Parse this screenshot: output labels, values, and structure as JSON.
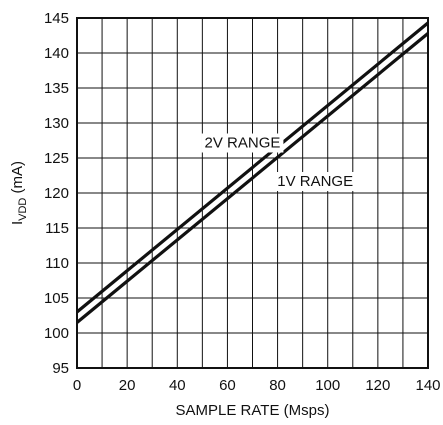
{
  "chart_data": {
    "type": "line",
    "title": "",
    "xlabel": "SAMPLE RATE (Msps)",
    "ylabel": {
      "main": "I",
      "subscript": "VDD",
      "suffix": " (mA)"
    },
    "xlim": [
      0,
      140
    ],
    "ylim": [
      95,
      145
    ],
    "x_ticks": [
      0,
      20,
      40,
      60,
      80,
      100,
      120,
      140
    ],
    "y_ticks": [
      95,
      100,
      105,
      110,
      115,
      120,
      125,
      130,
      135,
      140,
      145
    ],
    "x_tick_labels": [
      "0",
      "20",
      "40",
      "60",
      "80",
      "100",
      "120",
      "140"
    ],
    "y_tick_labels": [
      "95",
      "100",
      "105",
      "110",
      "115",
      "120",
      "125",
      "130",
      "135",
      "140",
      "145"
    ],
    "x_grid_step": 10,
    "y_grid_step": 5,
    "grid": true,
    "legend": "none",
    "colors": {
      "line": "#111111",
      "grid": "#111111",
      "axis": "#111111"
    },
    "series": [
      {
        "name": "2V RANGE",
        "x": [
          0,
          140
        ],
        "y": [
          103,
          144.3
        ]
      },
      {
        "name": "1V RANGE",
        "x": [
          0,
          140
        ],
        "y": [
          101.5,
          142.8
        ]
      }
    ],
    "annotations": [
      {
        "text": "2V RANGE",
        "series": 0,
        "anchor_x": 66,
        "anchor_y": 126.5
      },
      {
        "text": "1V RANGE",
        "series": 1,
        "anchor_x": 95,
        "anchor_y": 121
      }
    ]
  }
}
